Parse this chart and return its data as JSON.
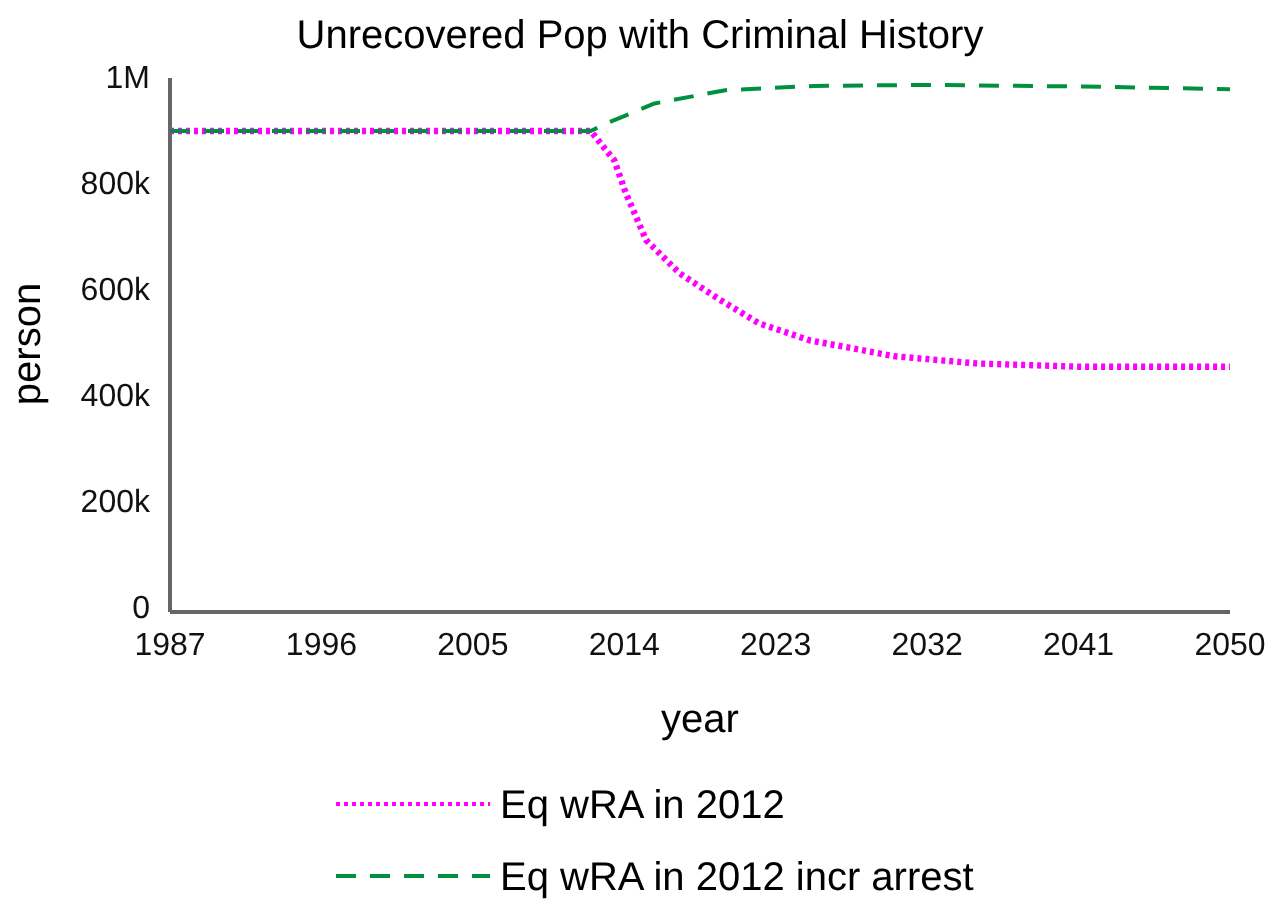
{
  "chart_data": {
    "type": "line",
    "title": "Unrecovered Pop with Criminal History",
    "xlabel": "year",
    "ylabel": "person",
    "xlim": [
      1987,
      2050
    ],
    "xticks": [
      1987,
      1996,
      2005,
      2014,
      2023,
      2032,
      2041,
      2050
    ],
    "ylim": [
      -8000,
      1000000
    ],
    "yticks": [
      0,
      {
        "value": 200000,
        "label": "200k"
      },
      {
        "value": 400000,
        "label": "400k"
      },
      {
        "value": 600000,
        "label": "600k"
      },
      {
        "value": 800000,
        "label": "800k"
      },
      {
        "value": 1000000,
        "label": "1M"
      }
    ],
    "grid": false,
    "legend": "bottom",
    "marker": "none",
    "series": [
      {
        "name": "Eq wRA in 2012",
        "color": "#ff00ff",
        "line_style": "dotted",
        "x": [
          1987,
          2012,
          2013.4,
          2014.1,
          2015.3,
          2017.3,
          2019.7,
          2022,
          2025,
          2030,
          2035,
          2041,
          2050
        ],
        "values": [
          900000,
          900000,
          845000,
          782000,
          694000,
          631000,
          581000,
          537000,
          505000,
          475000,
          461000,
          455000,
          455000
        ]
      },
      {
        "name": "Eq wRA in 2012 incr arrest",
        "color": "#00913f",
        "line_style": "dashed",
        "x": [
          1987,
          2012,
          2013,
          2015.8,
          2020,
          2025.3,
          2032,
          2041,
          2050
        ],
        "values": [
          900000,
          900000,
          915000,
          952000,
          977000,
          985000,
          987000,
          984000,
          979000
        ]
      }
    ]
  }
}
